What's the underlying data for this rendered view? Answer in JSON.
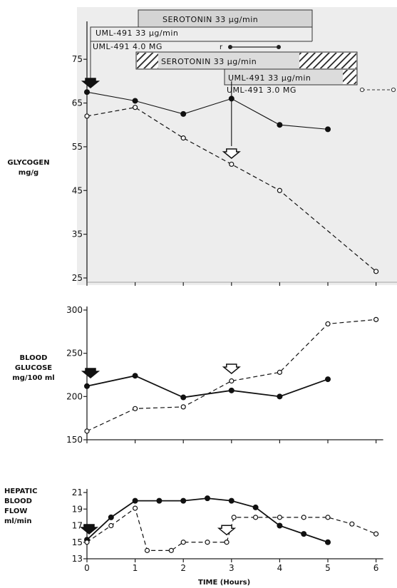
{
  "chart_data": [
    {
      "type": "line",
      "ylabel": "GLYCOGEN mg/g",
      "ylabel_lines": [
        "GLYCOGEN",
        "mg/g"
      ],
      "ylim": [
        25,
        80
      ],
      "yticks": [
        "75",
        "65",
        "55",
        "45",
        "35",
        "25"
      ],
      "ytick_values": [
        75,
        65,
        55,
        45,
        35,
        25
      ],
      "xlim": [
        0,
        6
      ],
      "series": [
        {
          "marker": "filled-circle",
          "line": "solid",
          "x": [
            0,
            1,
            2,
            3,
            4,
            5
          ],
          "y": [
            67.5,
            65.5,
            62.5,
            66,
            60,
            59
          ]
        },
        {
          "marker": "open-circle",
          "line": "dashed",
          "x": [
            0,
            1,
            2,
            3,
            4,
            6
          ],
          "y": [
            62,
            64,
            57,
            51,
            45,
            26.5
          ]
        }
      ],
      "annotations": {
        "legend_rows": [
          "SEROTONIN 33 μg/min",
          "UML-491 33 μg/min",
          "UML-491 4.0 MG",
          "SEROTONIN 33 μg/min",
          "UML-491 33 μg/min",
          "UML-491 3.0 MG"
        ]
      }
    },
    {
      "type": "line",
      "ylabel": "BLOOD GLUCOSE mg/100 ml",
      "ylabel_lines": [
        "BLOOD",
        "GLUCOSE",
        "mg/100 ml"
      ],
      "ylim": [
        150,
        300
      ],
      "yticks": [
        "300",
        "250",
        "200",
        "150"
      ],
      "ytick_values": [
        300,
        250,
        200,
        150
      ],
      "xlim": [
        0,
        6
      ],
      "series": [
        {
          "marker": "filled-circle",
          "line": "solid",
          "x": [
            0,
            1,
            2,
            3,
            4,
            5
          ],
          "y": [
            212,
            224,
            199,
            207,
            200,
            220
          ]
        },
        {
          "marker": "open-circle",
          "line": "dashed",
          "x": [
            0,
            1,
            2,
            3,
            4,
            5,
            6
          ],
          "y": [
            160,
            186,
            188,
            218,
            228,
            284,
            289
          ]
        }
      ]
    },
    {
      "type": "line",
      "ylabel": "HEPATIC BLOOD FLOW ml/min",
      "ylabel_lines": [
        "HEPATIC",
        "BLOOD",
        "FLOW",
        "",
        "ml/min"
      ],
      "ylim": [
        13,
        21
      ],
      "yticks": [
        "21",
        "19",
        "17",
        "15",
        "13"
      ],
      "ytick_values": [
        21,
        19,
        17,
        15,
        13
      ],
      "xlim": [
        0,
        6
      ],
      "xticks": [
        "0",
        "1",
        "2",
        "3",
        "4",
        "5",
        "6"
      ],
      "xlabel": "TIME (Hours)",
      "series": [
        {
          "marker": "filled-circle",
          "line": "solid",
          "x": [
            0,
            0.5,
            1,
            1.5,
            2,
            2.5,
            3,
            3.5,
            4,
            4.5,
            5
          ],
          "y": [
            15.3,
            18,
            20,
            20,
            20,
            20.3,
            20,
            19.2,
            17,
            16,
            15
          ]
        },
        {
          "marker": "open-circle",
          "line": "dashed",
          "x": [
            0,
            0.5,
            1,
            1.25,
            1.75,
            2,
            2.5,
            2.9,
            3.05,
            3.5,
            4,
            4.5,
            5,
            5.5,
            6
          ],
          "y": [
            15,
            17,
            19.1,
            14,
            14,
            15,
            15,
            15,
            18,
            18,
            18,
            18,
            18,
            17.2,
            16
          ]
        }
      ]
    }
  ]
}
